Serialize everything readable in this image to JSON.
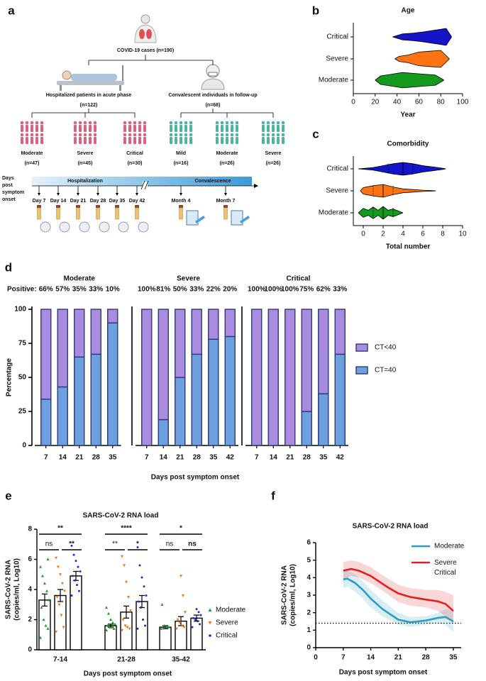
{
  "diagram": {
    "panel": "a",
    "root": "COVID-19 cases (n=190)",
    "branches": [
      {
        "title": "Hospitalized patients in acute phase",
        "count": "(n=122)",
        "color": "#d9647f",
        "groups": [
          {
            "label": "Moderate",
            "count": "(n=47)"
          },
          {
            "label": "Severe",
            "count": "(n=45)"
          },
          {
            "label": "Critical",
            "count": "(n=30)"
          }
        ]
      },
      {
        "title": "Convalescent individuals in follow-up",
        "count": "(n=68)",
        "color": "#4fb3a0",
        "groups": [
          {
            "label": "Mild",
            "count": "(n=16)"
          },
          {
            "label": "Moderate",
            "count": "(n=26)"
          },
          {
            "label": "Severe",
            "count": "(n=26)"
          }
        ]
      }
    ],
    "timeline": {
      "label": [
        "Days",
        "post",
        "symptom",
        "onset"
      ],
      "phases": [
        "Hospitalization",
        "Convalescence"
      ],
      "samples": [
        "Day 7",
        "Day 14",
        "Day 21",
        "Day 28",
        "Day 35",
        "Day 42",
        "Month 4",
        "Month 7"
      ]
    }
  },
  "chart_data": [
    {
      "panel": "b",
      "type": "violin",
      "title": "Age",
      "xlabel": "Year",
      "xlim": [
        0,
        100
      ],
      "xticks": [
        0,
        20,
        40,
        60,
        80,
        100
      ],
      "series": [
        {
          "name": "Critical",
          "color": "#1414c8",
          "x": [
            36,
            45,
            55,
            65,
            75,
            85,
            90
          ],
          "density": [
            0,
            0.35,
            0.45,
            0.6,
            0.8,
            1,
            0
          ]
        },
        {
          "name": "Severe",
          "color": "#ff7410",
          "x": [
            38,
            42,
            50,
            60,
            70,
            80,
            88
          ],
          "density": [
            0,
            0.3,
            0.45,
            0.8,
            0.9,
            1,
            0
          ]
        },
        {
          "name": "Moderate",
          "color": "#139a1c",
          "x": [
            20,
            25,
            35,
            45,
            55,
            65,
            75,
            83
          ],
          "density": [
            0,
            0.5,
            0.7,
            0.9,
            0.8,
            0.7,
            0.6,
            0
          ]
        }
      ]
    },
    {
      "panel": "c",
      "type": "violin",
      "title": "Comorbidity",
      "xlabel": "Total number",
      "xlim": [
        -1,
        10
      ],
      "xticks": [
        0,
        2,
        4,
        6,
        8,
        10
      ],
      "series": [
        {
          "name": "Critical",
          "color": "#1414c8",
          "x": [
            -0.5,
            1,
            2,
            3,
            4,
            5,
            6,
            7,
            8,
            8.3
          ],
          "density": [
            0,
            0.2,
            0.5,
            0.8,
            1,
            0.8,
            0.5,
            0.3,
            0.1,
            0
          ],
          "median": 4,
          "quartiles": [
            2.5,
            5
          ]
        },
        {
          "name": "Severe",
          "color": "#ff7410",
          "x": [
            -0.3,
            0,
            1,
            2,
            3,
            4,
            5,
            6,
            7,
            7.3
          ],
          "density": [
            0,
            0.5,
            0.8,
            1,
            0.6,
            0.3,
            0.2,
            0.1,
            0.05,
            0
          ],
          "median": 2,
          "quartiles": [
            1,
            3
          ]
        },
        {
          "name": "Moderate",
          "color": "#139a1c",
          "x": [
            -0.5,
            0,
            0.5,
            1,
            1.5,
            2,
            2.5,
            3,
            3.5,
            4
          ],
          "density": [
            0,
            0.7,
            0.4,
            0.9,
            0.4,
            1,
            0.4,
            0.6,
            0.3,
            0
          ],
          "median": 2,
          "quartiles": [
            1,
            3
          ]
        }
      ]
    },
    {
      "panel": "d",
      "type": "stacked_bar",
      "ylabel": "Percentage",
      "xlabel": "Days post symptom onset",
      "ylim": [
        0,
        100
      ],
      "yticks": [
        0,
        25,
        50,
        75,
        100
      ],
      "positive_label": "Positive:",
      "legend": "right",
      "series": [
        {
          "name": "CT=40",
          "color": "#6e9fe0"
        },
        {
          "name": "CT<40",
          "color": "#a98be0"
        }
      ],
      "groups": [
        {
          "title": "Moderate",
          "categories": [
            "7",
            "14",
            "21",
            "28",
            "35"
          ],
          "values": [
            [
              34,
              43,
              65,
              67,
              90
            ],
            [
              66,
              57,
              35,
              33,
              10
            ]
          ],
          "value_labels": [
            "66%",
            "57%",
            "35%",
            "33%",
            "10%"
          ]
        },
        {
          "title": "Severe",
          "categories": [
            "7",
            "14",
            "21",
            "28",
            "35",
            "42"
          ],
          "values": [
            [
              0,
              19,
              50,
              67,
              78,
              80
            ],
            [
              100,
              81,
              50,
              33,
              22,
              20
            ]
          ],
          "value_labels": [
            "100%",
            "81%",
            "50%",
            "33%",
            "22%",
            "20%"
          ]
        },
        {
          "title": "Critical",
          "categories": [
            "7",
            "14",
            "21",
            "28",
            "35",
            "42"
          ],
          "values": [
            [
              0,
              0,
              0,
              25,
              38,
              67
            ],
            [
              100,
              100,
              100,
              75,
              62,
              33
            ]
          ],
          "value_labels": [
            "100%",
            "100%",
            "100%",
            "75%",
            "62%",
            "33%"
          ]
        }
      ]
    },
    {
      "panel": "e",
      "type": "bar_scatter",
      "title": "SARS-CoV-2 RNA load",
      "ylabel": [
        "SARS-CoV-2 RNA",
        "(copies/ml, Log10)"
      ],
      "xlabel": "Days post symptom onset",
      "categories": [
        "7-14",
        "21-28",
        "35-42"
      ],
      "ylim": [
        0,
        8
      ],
      "yticks": [
        0,
        2,
        4,
        6,
        8
      ],
      "series": [
        {
          "name": "Moderate",
          "color": "#1a9a2a",
          "marker": "triangle-up",
          "values": [
            3.3,
            1.6,
            1.5
          ],
          "errors": [
            0.4,
            0.1,
            0.1
          ],
          "points": [
            [
              0.8,
              1.4,
              1.6,
              2.0,
              2.8,
              3.3,
              3.9,
              4.4,
              4.9,
              5.5,
              6.0
            ],
            [
              1.3,
              1.4,
              1.5,
              1.5,
              1.6,
              1.7,
              1.8,
              2.0,
              2.4,
              2.8
            ],
            [
              1.4,
              1.5,
              1.5,
              1.6,
              3.0
            ]
          ]
        },
        {
          "name": "Severe",
          "color": "#f07818",
          "marker": "triangle-down",
          "values": [
            3.6,
            2.5,
            1.9
          ],
          "errors": [
            0.4,
            0.4,
            0.3
          ],
          "points": [
            [
              1.2,
              1.5,
              2.3,
              3.0,
              3.5,
              3.9,
              4.4,
              5.0,
              5.5,
              6.1
            ],
            [
              1.3,
              1.4,
              1.5,
              1.6,
              2.0,
              2.6,
              3.5,
              4.5,
              5.6,
              6.2
            ],
            [
              1.4,
              1.5,
              1.6,
              1.8,
              2.0,
              2.5,
              3.6,
              4.9
            ]
          ]
        },
        {
          "name": "Critical",
          "color": "#1a2ad0",
          "marker": "circle",
          "values": [
            4.9,
            3.2,
            2.1
          ],
          "errors": [
            0.3,
            0.4,
            0.2
          ],
          "points": [
            [
              3.6,
              3.9,
              4.3,
              4.6,
              4.9,
              5.2,
              5.5,
              5.9,
              6.3,
              6.9
            ],
            [
              1.4,
              1.6,
              2.0,
              2.8,
              3.2,
              3.6,
              4.2,
              4.8,
              5.6,
              6.8
            ],
            [
              1.5,
              1.7,
              1.9,
              2.0,
              2.1,
              2.3,
              2.5,
              2.7
            ]
          ]
        }
      ],
      "significance": [
        {
          "all": "**",
          "left": "ns",
          "right": "**"
        },
        {
          "all": "****",
          "left": "**",
          "right": "*"
        },
        {
          "all": "*",
          "left": "ns",
          "right": "ns"
        }
      ]
    },
    {
      "panel": "f",
      "type": "line",
      "title": "SARS-CoV-2 RNA load",
      "ylabel": [
        "SARS-CoV-2 RNA",
        "(copies/ml, Log10)"
      ],
      "xlabel": "Days post symptom onset",
      "xlim": [
        0,
        37
      ],
      "ylim": [
        0,
        6
      ],
      "xticks": [
        0,
        7,
        14,
        21,
        28,
        35
      ],
      "yticks": [
        0,
        1,
        2,
        3,
        4,
        5,
        6
      ],
      "threshold": 1.4,
      "series": [
        {
          "name": "Moderate",
          "color": "#2a9ec4",
          "x": [
            7,
            8,
            10,
            12,
            14,
            17,
            21,
            24,
            28,
            31,
            33,
            35
          ],
          "values": [
            3.9,
            3.95,
            3.7,
            3.3,
            2.8,
            2.2,
            1.6,
            1.45,
            1.55,
            1.7,
            1.75,
            1.5
          ],
          "lower": [
            3.4,
            3.5,
            3.2,
            2.8,
            2.3,
            1.8,
            1.3,
            1.2,
            1.3,
            1.4,
            1.3,
            0.9
          ],
          "upper": [
            4.4,
            4.4,
            4.2,
            3.8,
            3.3,
            2.7,
            2.0,
            1.75,
            1.8,
            2.0,
            2.2,
            2.1
          ]
        },
        {
          "name": "Severe\nCritical",
          "color": "#e02020",
          "x": [
            7,
            9,
            11,
            14,
            18,
            21,
            24,
            28,
            31,
            33,
            35
          ],
          "values": [
            4.4,
            4.5,
            4.4,
            4.1,
            3.5,
            3.1,
            2.9,
            2.75,
            2.65,
            2.5,
            2.1
          ],
          "lower": [
            3.9,
            4.1,
            4.0,
            3.7,
            3.1,
            2.6,
            2.4,
            2.3,
            2.1,
            1.8,
            1.4
          ],
          "upper": [
            4.9,
            5.0,
            4.9,
            4.6,
            4.0,
            3.6,
            3.4,
            3.3,
            3.3,
            3.2,
            3.0
          ]
        }
      ]
    }
  ]
}
